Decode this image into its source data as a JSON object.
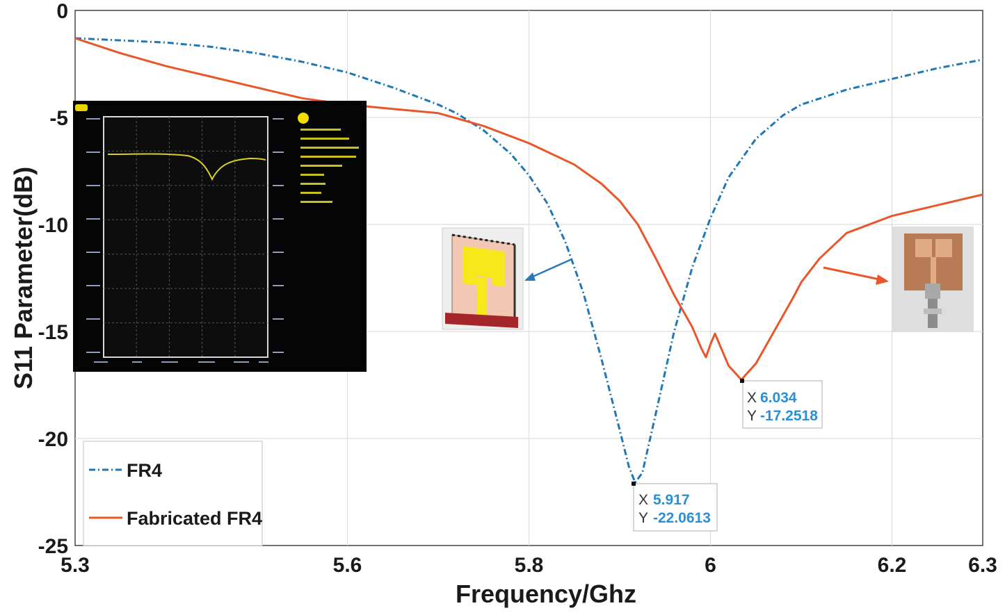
{
  "chart_data": {
    "type": "line",
    "xlabel": "Frequency/Ghz",
    "ylabel": "S11 Parameter(dB)",
    "xlim": [
      5.3,
      6.3
    ],
    "ylim": [
      -25,
      0
    ],
    "x_ticks": [
      5.3,
      5.6,
      5.8,
      6,
      6.2,
      6.3
    ],
    "x_tick_labels": [
      "5.3",
      "5.6",
      "5.8",
      "6",
      "6.2",
      "6.3"
    ],
    "y_ticks": [
      0,
      -5,
      -10,
      -15,
      -20,
      -25
    ],
    "y_tick_labels": [
      "0",
      "-5",
      "-10",
      "-15",
      "-20",
      "-25"
    ],
    "grid": true,
    "legend_position": "bottom-left",
    "series": [
      {
        "name": "FR4",
        "color": "#1f77b4",
        "style": "dash-dot",
        "x": [
          5.3,
          5.35,
          5.4,
          5.45,
          5.5,
          5.55,
          5.6,
          5.65,
          5.7,
          5.72,
          5.75,
          5.78,
          5.8,
          5.82,
          5.84,
          5.86,
          5.88,
          5.9,
          5.91,
          5.917,
          5.925,
          5.94,
          5.96,
          5.98,
          6.0,
          6.02,
          6.05,
          6.08,
          6.1,
          6.15,
          6.2,
          6.25,
          6.3
        ],
        "y": [
          -1.3,
          -1.4,
          -1.5,
          -1.7,
          -2.0,
          -2.4,
          -2.9,
          -3.6,
          -4.4,
          -4.8,
          -5.6,
          -6.7,
          -7.7,
          -9.0,
          -10.8,
          -13.2,
          -16.3,
          -19.6,
          -21.3,
          -22.0613,
          -21.6,
          -18.8,
          -15.0,
          -12.0,
          -9.7,
          -7.8,
          -6.0,
          -4.9,
          -4.4,
          -3.7,
          -3.2,
          -2.7,
          -2.3
        ]
      },
      {
        "name": "Fabricated FR4",
        "color": "#e8562a",
        "style": "solid",
        "x": [
          5.3,
          5.35,
          5.4,
          5.45,
          5.5,
          5.55,
          5.6,
          5.65,
          5.7,
          5.75,
          5.8,
          5.85,
          5.88,
          5.9,
          5.92,
          5.94,
          5.96,
          5.98,
          5.99,
          5.995,
          6.0,
          6.005,
          6.01,
          6.02,
          6.034,
          6.05,
          6.07,
          6.09,
          6.1,
          6.12,
          6.15,
          6.2,
          6.25,
          6.3
        ],
        "y": [
          -1.3,
          -2.0,
          -2.6,
          -3.1,
          -3.6,
          -4.1,
          -4.4,
          -4.6,
          -4.8,
          -5.4,
          -6.2,
          -7.2,
          -8.1,
          -8.9,
          -10.0,
          -11.6,
          -13.3,
          -14.8,
          -15.8,
          -16.2,
          -15.6,
          -15.1,
          -15.6,
          -16.6,
          -17.2518,
          -16.5,
          -15.0,
          -13.5,
          -12.7,
          -11.6,
          -10.4,
          -9.6,
          -9.1,
          -8.6
        ]
      }
    ],
    "annotations": [
      {
        "x_key": "X",
        "x_value": "5.917",
        "y_key": "Y",
        "y_value": "-22.0613",
        "series": "FR4"
      },
      {
        "x_key": "X",
        "x_value": "6.034",
        "y_key": "Y",
        "y_value": "-17.2518",
        "series": "Fabricated FR4"
      }
    ],
    "insets": [
      "vna-measurement-screenshot",
      "antenna-simulation-model",
      "fabricated-antenna-photo"
    ]
  }
}
